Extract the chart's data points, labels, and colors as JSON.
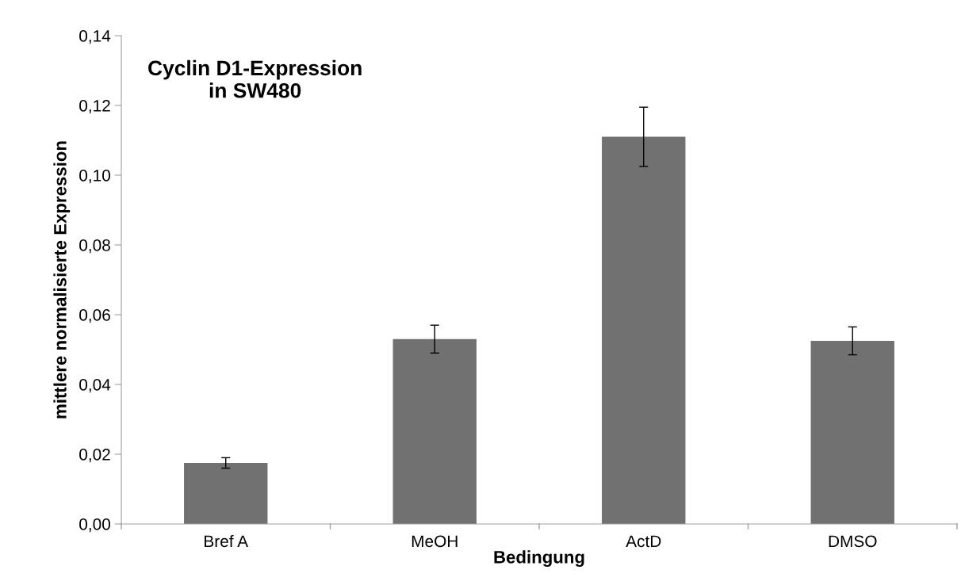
{
  "chart_data": {
    "type": "bar",
    "title": "Cyclin D1-Expression\nin SW480",
    "xlabel": "Bedingung",
    "ylabel": "mittlere normalisierte Expression",
    "categories": [
      "Bref A",
      "MeOH",
      "ActD",
      "DMSO"
    ],
    "values": [
      0.0175,
      0.053,
      0.111,
      0.0525
    ],
    "errors": [
      0.0015,
      0.004,
      0.0085,
      0.004
    ],
    "color": "#717171",
    "ylim": [
      0,
      0.14
    ],
    "yticks": [
      {
        "value": 0,
        "label": "0,00"
      },
      {
        "value": 0.02,
        "label": "0,02"
      },
      {
        "value": 0.04,
        "label": "0,04"
      },
      {
        "value": 0.06,
        "label": "0,06"
      },
      {
        "value": 0.08,
        "label": "0,08"
      },
      {
        "value": 0.1,
        "label": "0,10"
      },
      {
        "value": 0.12,
        "label": "0,12"
      },
      {
        "value": 0.14,
        "label": "0,14"
      }
    ],
    "grid": false,
    "legend": false
  }
}
